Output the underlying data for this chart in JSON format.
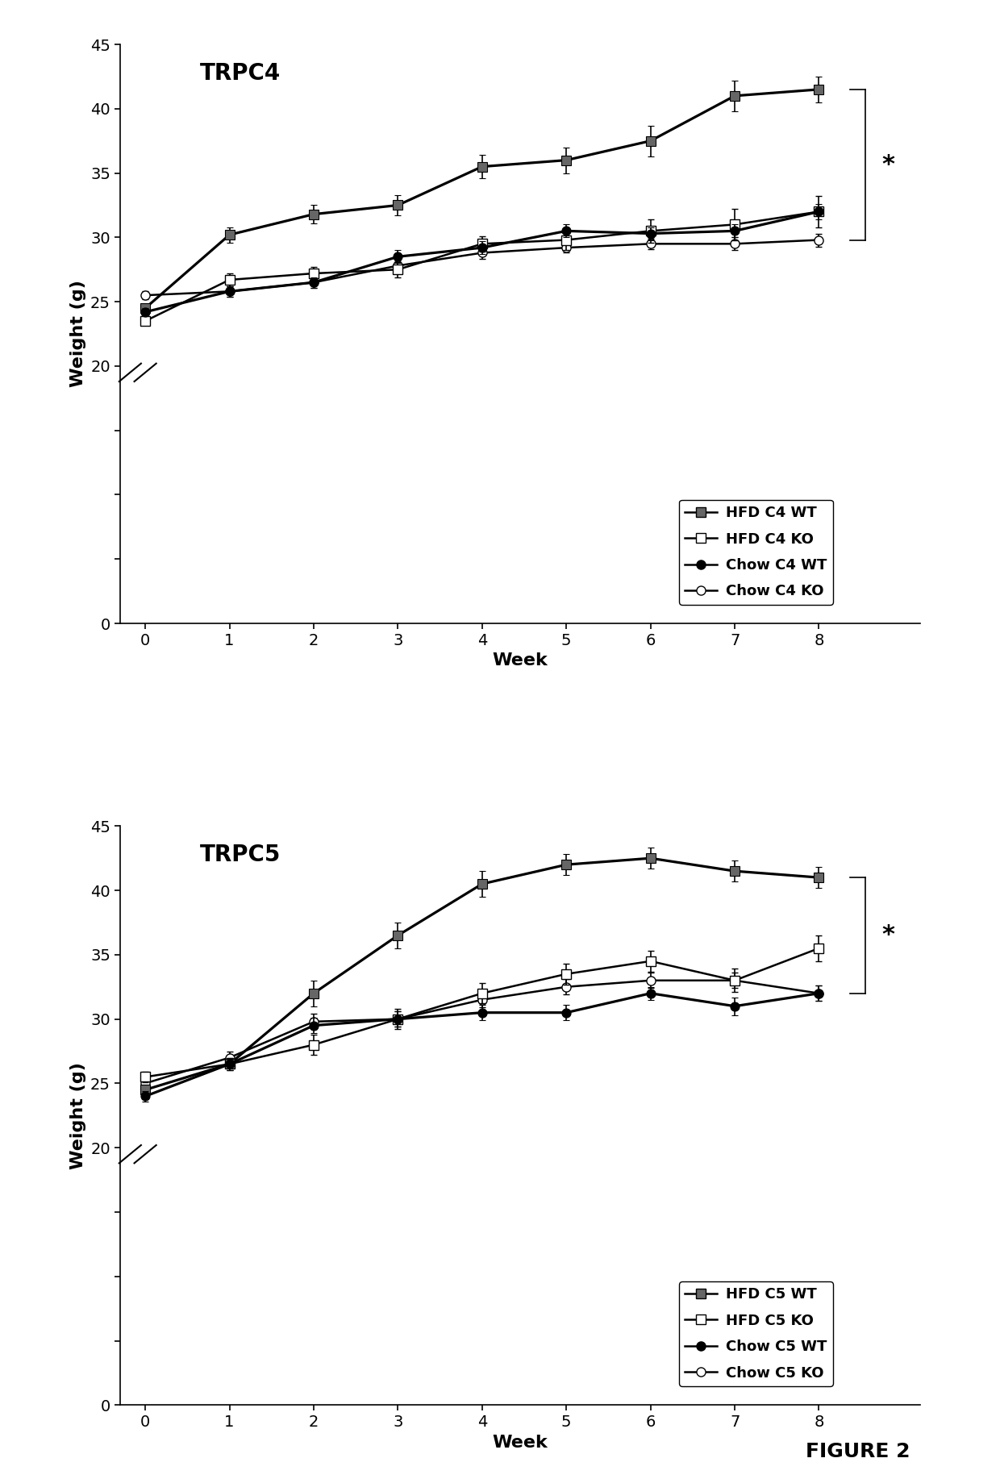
{
  "trpc4": {
    "title": "TRPC4",
    "weeks": [
      0,
      1,
      2,
      3,
      4,
      5,
      6,
      7,
      8
    ],
    "hfd_wt_mean": [
      24.5,
      30.2,
      31.8,
      32.5,
      35.5,
      36.0,
      37.5,
      41.0,
      41.5
    ],
    "hfd_wt_err": [
      0.3,
      0.6,
      0.7,
      0.8,
      0.9,
      1.0,
      1.2,
      1.2,
      1.0
    ],
    "hfd_ko_mean": [
      23.5,
      26.7,
      27.2,
      27.5,
      29.5,
      29.8,
      30.5,
      31.0,
      32.0
    ],
    "hfd_ko_err": [
      0.3,
      0.5,
      0.5,
      0.6,
      0.6,
      0.8,
      0.9,
      1.2,
      1.2
    ],
    "chow_wt_mean": [
      24.2,
      25.8,
      26.5,
      28.5,
      29.2,
      30.5,
      30.3,
      30.5,
      32.0
    ],
    "chow_wt_err": [
      0.3,
      0.4,
      0.4,
      0.5,
      0.5,
      0.5,
      0.5,
      0.5,
      0.6
    ],
    "chow_ko_mean": [
      25.5,
      25.8,
      26.5,
      27.8,
      28.8,
      29.2,
      29.5,
      29.5,
      29.8
    ],
    "chow_ko_err": [
      0.3,
      0.4,
      0.4,
      0.4,
      0.5,
      0.4,
      0.4,
      0.5,
      0.5
    ],
    "ylabel": "Weight (g)",
    "xlabel": "Week",
    "ylim": [
      0,
      45
    ],
    "yticks": [
      0,
      5,
      10,
      15,
      20,
      25,
      30,
      35,
      40,
      45
    ],
    "xlim": [
      -0.3,
      9.2
    ],
    "xticks": [
      0,
      1,
      2,
      3,
      4,
      5,
      6,
      7,
      8
    ],
    "legend_labels": [
      "HFD C4 WT",
      "HFD C4 KO",
      "Chow C4 WT",
      "Chow C4 KO"
    ],
    "sig_bracket_x": 8.55,
    "sig_bracket_y1": 41.5,
    "sig_bracket_y2": 29.8,
    "break_y": 19.5,
    "break_x": -0.18
  },
  "trpc5": {
    "title": "TRPC5",
    "weeks": [
      0,
      1,
      2,
      3,
      4,
      5,
      6,
      7,
      8
    ],
    "hfd_wt_mean": [
      24.5,
      26.5,
      32.0,
      36.5,
      40.5,
      42.0,
      42.5,
      41.5,
      41.0
    ],
    "hfd_wt_err": [
      0.4,
      0.5,
      1.0,
      1.0,
      1.0,
      0.8,
      0.8,
      0.8,
      0.8
    ],
    "hfd_ko_mean": [
      25.5,
      26.5,
      28.0,
      30.0,
      32.0,
      33.5,
      34.5,
      33.0,
      35.5
    ],
    "hfd_ko_err": [
      0.4,
      0.5,
      0.8,
      0.8,
      0.8,
      0.8,
      0.8,
      0.9,
      1.0
    ],
    "chow_wt_mean": [
      24.0,
      26.5,
      29.5,
      30.0,
      30.5,
      30.5,
      32.0,
      31.0,
      32.0
    ],
    "chow_wt_err": [
      0.4,
      0.5,
      0.6,
      0.6,
      0.6,
      0.6,
      0.5,
      0.7,
      0.6
    ],
    "chow_ko_mean": [
      25.0,
      27.0,
      29.8,
      30.0,
      31.5,
      32.5,
      33.0,
      33.0,
      32.0
    ],
    "chow_ko_err": [
      0.4,
      0.5,
      0.6,
      0.6,
      0.6,
      0.6,
      0.6,
      0.6,
      0.6
    ],
    "ylabel": "Weight (g)",
    "xlabel": "Week",
    "ylim": [
      0,
      45
    ],
    "yticks": [
      0,
      5,
      10,
      15,
      20,
      25,
      30,
      35,
      40,
      45
    ],
    "xlim": [
      -0.3,
      9.2
    ],
    "xticks": [
      0,
      1,
      2,
      3,
      4,
      5,
      6,
      7,
      8
    ],
    "legend_labels": [
      "HFD C5 WT",
      "HFD C5 KO",
      "Chow C5 WT",
      "Chow C5 KO"
    ],
    "sig_bracket_x": 8.55,
    "sig_bracket_y1": 41.0,
    "sig_bracket_y2": 32.0,
    "break_y": 19.5,
    "break_x": -0.18
  },
  "figure_label": "FIGURE 2",
  "line_color": "#000000",
  "markersize": 8,
  "linewidth": 1.8,
  "capsize": 3,
  "elinewidth": 1.2,
  "title_fontsize": 20,
  "label_fontsize": 16,
  "tick_fontsize": 14,
  "legend_fontsize": 13,
  "fig_label_fontsize": 18
}
